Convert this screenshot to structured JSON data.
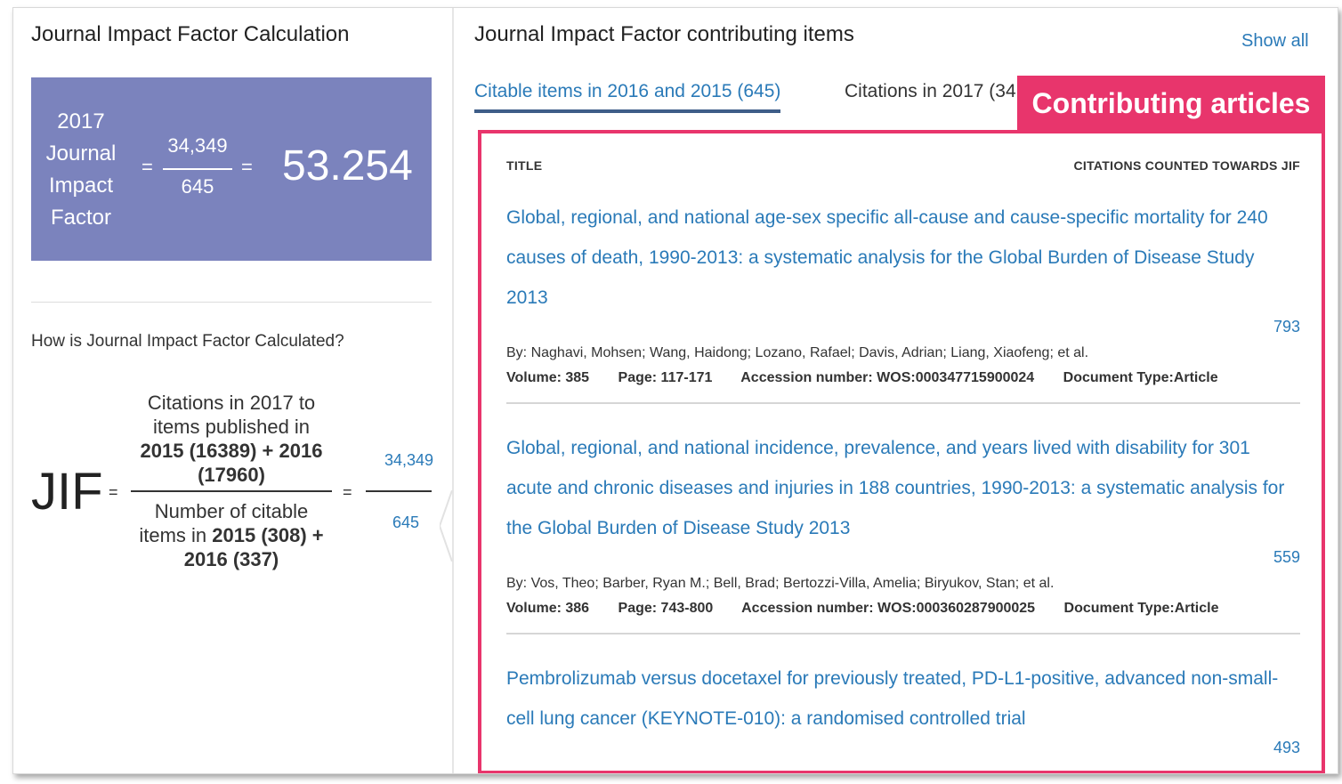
{
  "left": {
    "title": "Journal Impact Factor Calculation",
    "box": {
      "year": "2017",
      "label1": "Journal",
      "label2": "Impact",
      "label3": "Factor",
      "eq": "=",
      "numerator": "34,349",
      "denominator": "645",
      "value": "53.254"
    },
    "how_text": "How is Journal Impact Factor Calculated?",
    "formula": {
      "jif": "JIF",
      "eq": "=",
      "num_line1": "Citations in 2017 to",
      "num_line2": "items published in",
      "num_bold1": "2015 (16389) + 2016",
      "num_bold2": "(17960)",
      "den_line1": "Number of citable",
      "den_line2_pre": "items in ",
      "den_line2_bold": "2015 (308) +",
      "den_bold3": "2016 (337)",
      "small_num": "34,349",
      "small_den": "645"
    }
  },
  "right": {
    "title": "Journal Impact Factor contributing items",
    "show_all": "Show all",
    "tabs": [
      "Citable items in 2016 and 2015 (645)",
      "Citations in 2017 (34"
    ],
    "callout": "Contributing articles",
    "columns": {
      "title": "TITLE",
      "citations": "CITATIONS COUNTED TOWARDS JIF"
    },
    "articles": [
      {
        "title": "Global, regional, and national age-sex specific all-cause and cause-specific mortality for 240 causes of death, 1990-2013: a systematic analysis for the Global Burden of Disease Study 2013",
        "citations": "793",
        "authors": "By: Naghavi, Mohsen; Wang, Haidong; Lozano, Rafael; Davis, Adrian; Liang, Xiaofeng; et al.",
        "volume": "Volume: 385",
        "page": "Page: 117-171",
        "accession": "Accession number: WOS:000347715900024",
        "doctype": "Document Type:Article"
      },
      {
        "title": "Global, regional, and national incidence, prevalence, and years lived with disability for 301 acute and chronic diseases and injuries in 188 countries, 1990-2013: a systematic analysis for the Global Burden of Disease Study 2013",
        "citations": "559",
        "authors": "By: Vos, Theo; Barber, Ryan M.; Bell, Brad; Bertozzi-Villa, Amelia; Biryukov, Stan; et al.",
        "volume": "Volume: 386",
        "page": "Page: 743-800",
        "accession": "Accession number: WOS:000360287900025",
        "doctype": "Document Type:Article"
      },
      {
        "title": "Pembrolizumab versus docetaxel for previously treated, PD-L1-positive, advanced non-small-cell lung cancer (KEYNOTE-010): a randomised controlled trial",
        "citations": "493"
      }
    ]
  },
  "colors": {
    "accent": "#2a7ab8",
    "box": "#7b83bd",
    "highlight": "#e8356c",
    "tab_underline": "#3e5d88"
  }
}
